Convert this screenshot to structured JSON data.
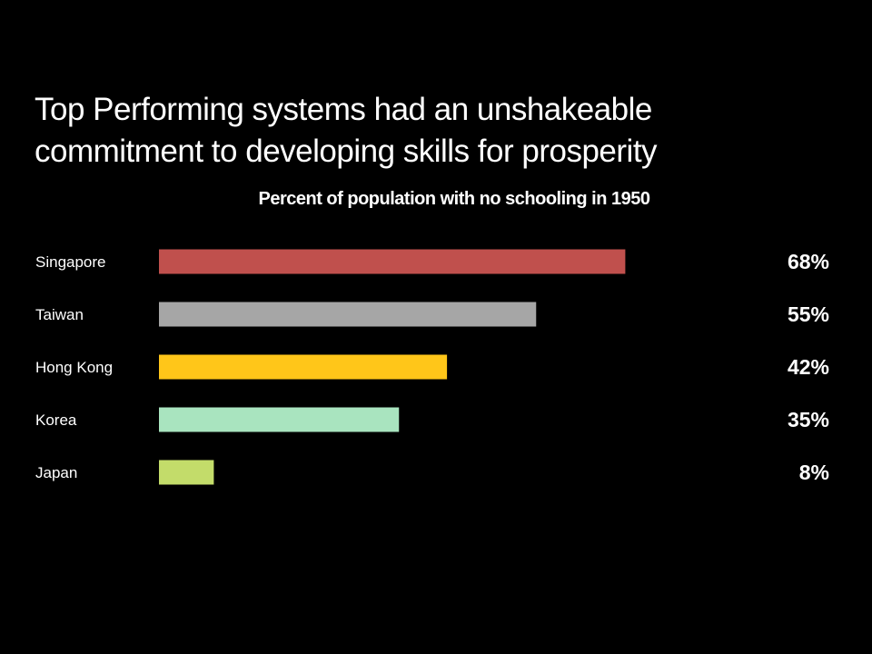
{
  "slide": {
    "title_line1": "Top Performing systems had an unshakeable",
    "title_line2": "commitment to developing skills for prosperity"
  },
  "chart_data": {
    "type": "bar",
    "orientation": "horizontal",
    "title": "Percent of population with no schooling in 1950",
    "categories": [
      "Singapore",
      "Taiwan",
      "Hong Kong",
      "Korea",
      "Japan"
    ],
    "values": [
      68,
      55,
      42,
      35,
      8
    ],
    "value_labels": [
      "68%",
      "55%",
      "42%",
      "35%",
      "8%"
    ],
    "colors": [
      "#c0504d",
      "#a6a6a6",
      "#ffc619",
      "#a9e4bf",
      "#c3dc6a"
    ],
    "xlim": [
      0,
      100
    ],
    "grid": false,
    "legend": "none"
  }
}
